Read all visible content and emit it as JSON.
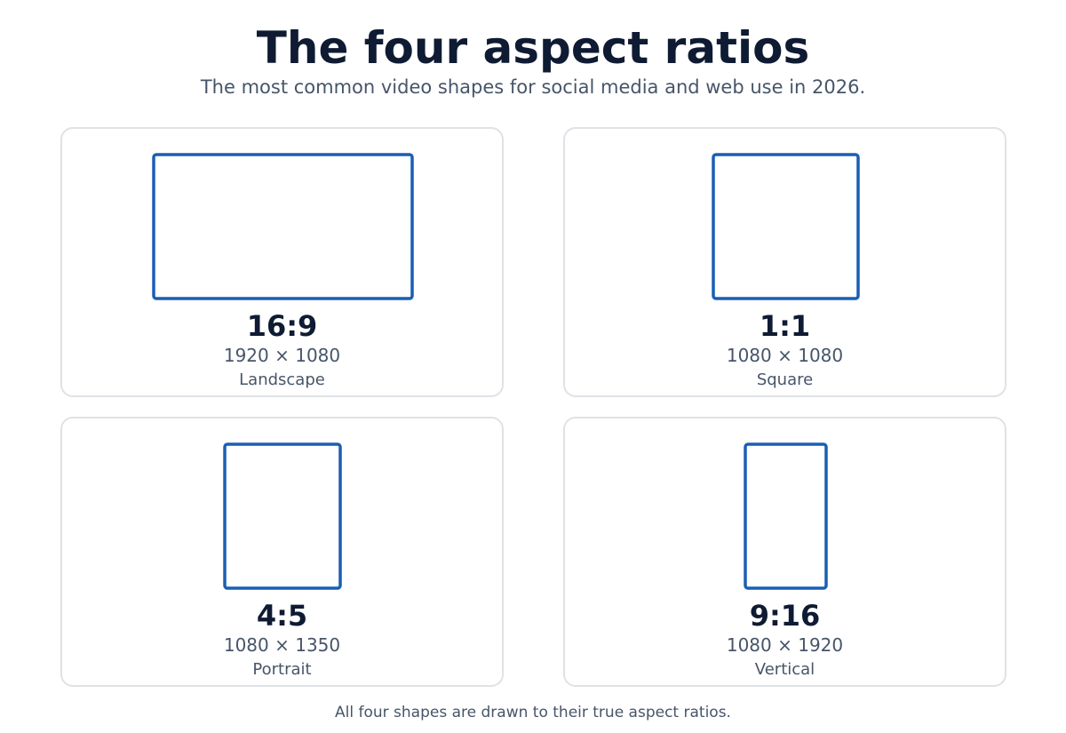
{
  "header": {
    "title": "The four aspect ratios",
    "subtitle": "The most common video shapes for social media and web use in 2026."
  },
  "cards": [
    {
      "ratio": "16:9",
      "dimensions": "1920 × 1080",
      "label": "Landscape"
    },
    {
      "ratio": "1:1",
      "dimensions": "1080 × 1080",
      "label": "Square"
    },
    {
      "ratio": "4:5",
      "dimensions": "1080 × 1350",
      "label": "Portrait"
    },
    {
      "ratio": "9:16",
      "dimensions": "1080 × 1920",
      "label": "Vertical"
    }
  ],
  "footer": "All four shapes are drawn to their true aspect ratios."
}
